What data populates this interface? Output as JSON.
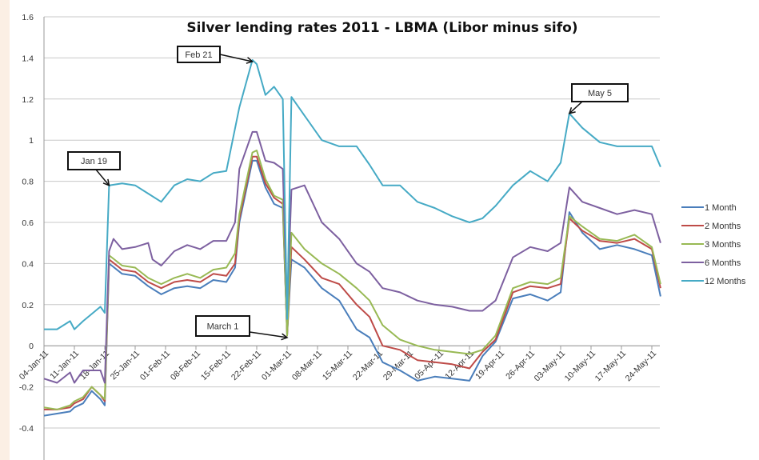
{
  "chart_data": {
    "type": "line",
    "title": "Silver lending rates 2011 - LBMA  (Libor minus sifo)",
    "xlabel": "",
    "ylabel": "",
    "x_unit": "days since 04-Jan-11",
    "ylim": [
      -0.4,
      1.6
    ],
    "yticks": [
      "1.6",
      "1.4",
      "1.2",
      "1",
      "0.8",
      "0.6",
      "0.4",
      "0.2",
      "0",
      "-0.2",
      "-0.4"
    ],
    "ytick_values": [
      1.6,
      1.4,
      1.2,
      1,
      0.8,
      0.6,
      0.4,
      0.2,
      0,
      -0.2,
      -0.4
    ],
    "xticks": [
      "04-Jan-11",
      "11-Jan-11",
      "18-Jan-11",
      "25-Jan-11",
      "01-Feb-11",
      "08-Feb-11",
      "15-Feb-11",
      "22-Feb-11",
      "01-Mar-11",
      "08-Mar-11",
      "15-Mar-11",
      "22-Mar-11",
      "29-Mar-11",
      "05-Apr-11",
      "12-Apr-11",
      "19-Apr-11",
      "26-Apr-11",
      "03-May-11",
      "10-May-11",
      "17-May-11",
      "24-May-11"
    ],
    "grid": true,
    "legend_position": "right",
    "series": [
      {
        "name": "1 Month",
        "color": "#4a7ebb",
        "points": [
          [
            0,
            -0.34
          ],
          [
            3,
            -0.33
          ],
          [
            6,
            -0.32
          ],
          [
            7,
            -0.3
          ],
          [
            9,
            -0.28
          ],
          [
            11,
            -0.22
          ],
          [
            13,
            -0.26
          ],
          [
            14,
            -0.29
          ],
          [
            15,
            0.4
          ],
          [
            18,
            0.35
          ],
          [
            21,
            0.34
          ],
          [
            24,
            0.29
          ],
          [
            27,
            0.25
          ],
          [
            30,
            0.28
          ],
          [
            33,
            0.29
          ],
          [
            36,
            0.28
          ],
          [
            39,
            0.32
          ],
          [
            42,
            0.31
          ],
          [
            44,
            0.38
          ],
          [
            45,
            0.6
          ],
          [
            48,
            0.9
          ],
          [
            49,
            0.9
          ],
          [
            51,
            0.77
          ],
          [
            53,
            0.69
          ],
          [
            55,
            0.67
          ],
          [
            56,
            0.05
          ],
          [
            57,
            0.42
          ],
          [
            60,
            0.38
          ],
          [
            64,
            0.28
          ],
          [
            68,
            0.22
          ],
          [
            72,
            0.08
          ],
          [
            75,
            0.04
          ],
          [
            78,
            -0.08
          ],
          [
            82,
            -0.12
          ],
          [
            86,
            -0.17
          ],
          [
            90,
            -0.15
          ],
          [
            94,
            -0.16
          ],
          [
            98,
            -0.17
          ],
          [
            101,
            -0.05
          ],
          [
            104,
            0.02
          ],
          [
            108,
            0.23
          ],
          [
            112,
            0.25
          ],
          [
            116,
            0.22
          ],
          [
            119,
            0.26
          ],
          [
            121,
            0.65
          ],
          [
            124,
            0.55
          ],
          [
            128,
            0.47
          ],
          [
            132,
            0.49
          ],
          [
            136,
            0.47
          ],
          [
            140,
            0.44
          ],
          [
            142,
            0.24
          ]
        ]
      },
      {
        "name": "2 Months",
        "color": "#be4b48",
        "points": [
          [
            0,
            -0.31
          ],
          [
            3,
            -0.31
          ],
          [
            6,
            -0.3
          ],
          [
            7,
            -0.28
          ],
          [
            9,
            -0.26
          ],
          [
            11,
            -0.2
          ],
          [
            13,
            -0.24
          ],
          [
            14,
            -0.27
          ],
          [
            15,
            0.42
          ],
          [
            18,
            0.37
          ],
          [
            21,
            0.36
          ],
          [
            24,
            0.31
          ],
          [
            27,
            0.28
          ],
          [
            30,
            0.31
          ],
          [
            33,
            0.32
          ],
          [
            36,
            0.31
          ],
          [
            39,
            0.35
          ],
          [
            42,
            0.34
          ],
          [
            44,
            0.4
          ],
          [
            45,
            0.62
          ],
          [
            48,
            0.92
          ],
          [
            49,
            0.92
          ],
          [
            51,
            0.79
          ],
          [
            53,
            0.72
          ],
          [
            55,
            0.69
          ],
          [
            56,
            0.05
          ],
          [
            57,
            0.48
          ],
          [
            60,
            0.42
          ],
          [
            64,
            0.33
          ],
          [
            68,
            0.3
          ],
          [
            72,
            0.2
          ],
          [
            75,
            0.14
          ],
          [
            78,
            0.0
          ],
          [
            82,
            -0.02
          ],
          [
            86,
            -0.07
          ],
          [
            90,
            -0.08
          ],
          [
            94,
            -0.09
          ],
          [
            98,
            -0.11
          ],
          [
            101,
            -0.03
          ],
          [
            104,
            0.03
          ],
          [
            108,
            0.26
          ],
          [
            112,
            0.29
          ],
          [
            116,
            0.28
          ],
          [
            119,
            0.3
          ],
          [
            121,
            0.62
          ],
          [
            124,
            0.56
          ],
          [
            128,
            0.51
          ],
          [
            132,
            0.5
          ],
          [
            136,
            0.52
          ],
          [
            140,
            0.47
          ],
          [
            142,
            0.28
          ]
        ]
      },
      {
        "name": "3 Months",
        "color": "#98b954",
        "points": [
          [
            0,
            -0.3
          ],
          [
            3,
            -0.31
          ],
          [
            6,
            -0.29
          ],
          [
            7,
            -0.27
          ],
          [
            9,
            -0.25
          ],
          [
            11,
            -0.2
          ],
          [
            13,
            -0.24
          ],
          [
            14,
            -0.26
          ],
          [
            15,
            0.44
          ],
          [
            18,
            0.39
          ],
          [
            21,
            0.38
          ],
          [
            24,
            0.33
          ],
          [
            27,
            0.3
          ],
          [
            30,
            0.33
          ],
          [
            33,
            0.35
          ],
          [
            36,
            0.33
          ],
          [
            39,
            0.37
          ],
          [
            42,
            0.38
          ],
          [
            44,
            0.45
          ],
          [
            45,
            0.64
          ],
          [
            48,
            0.94
          ],
          [
            49,
            0.95
          ],
          [
            51,
            0.81
          ],
          [
            53,
            0.73
          ],
          [
            55,
            0.71
          ],
          [
            56,
            0.05
          ],
          [
            57,
            0.55
          ],
          [
            60,
            0.47
          ],
          [
            64,
            0.4
          ],
          [
            68,
            0.35
          ],
          [
            72,
            0.28
          ],
          [
            75,
            0.22
          ],
          [
            78,
            0.1
          ],
          [
            82,
            0.03
          ],
          [
            86,
            0.0
          ],
          [
            90,
            -0.02
          ],
          [
            94,
            -0.03
          ],
          [
            98,
            -0.04
          ],
          [
            101,
            -0.02
          ],
          [
            104,
            0.05
          ],
          [
            108,
            0.28
          ],
          [
            112,
            0.31
          ],
          [
            116,
            0.3
          ],
          [
            119,
            0.33
          ],
          [
            121,
            0.63
          ],
          [
            124,
            0.58
          ],
          [
            128,
            0.52
          ],
          [
            132,
            0.51
          ],
          [
            136,
            0.54
          ],
          [
            140,
            0.48
          ],
          [
            142,
            0.3
          ]
        ]
      },
      {
        "name": "6 Months",
        "color": "#7d60a0",
        "points": [
          [
            0,
            -0.16
          ],
          [
            3,
            -0.18
          ],
          [
            6,
            -0.13
          ],
          [
            7,
            -0.18
          ],
          [
            9,
            -0.12
          ],
          [
            13,
            -0.12
          ],
          [
            14,
            -0.18
          ],
          [
            15,
            0.46
          ],
          [
            16,
            0.52
          ],
          [
            18,
            0.47
          ],
          [
            21,
            0.48
          ],
          [
            24,
            0.5
          ],
          [
            25,
            0.42
          ],
          [
            27,
            0.39
          ],
          [
            30,
            0.46
          ],
          [
            33,
            0.49
          ],
          [
            36,
            0.47
          ],
          [
            39,
            0.51
          ],
          [
            42,
            0.51
          ],
          [
            44,
            0.6
          ],
          [
            45,
            0.86
          ],
          [
            48,
            1.04
          ],
          [
            49,
            1.04
          ],
          [
            51,
            0.9
          ],
          [
            53,
            0.89
          ],
          [
            55,
            0.86
          ],
          [
            56,
            0.17
          ],
          [
            57,
            0.76
          ],
          [
            60,
            0.78
          ],
          [
            64,
            0.6
          ],
          [
            68,
            0.52
          ],
          [
            72,
            0.4
          ],
          [
            75,
            0.36
          ],
          [
            78,
            0.28
          ],
          [
            82,
            0.26
          ],
          [
            86,
            0.22
          ],
          [
            90,
            0.2
          ],
          [
            94,
            0.19
          ],
          [
            98,
            0.17
          ],
          [
            101,
            0.17
          ],
          [
            104,
            0.22
          ],
          [
            108,
            0.43
          ],
          [
            112,
            0.48
          ],
          [
            116,
            0.46
          ],
          [
            119,
            0.5
          ],
          [
            121,
            0.77
          ],
          [
            124,
            0.7
          ],
          [
            128,
            0.67
          ],
          [
            132,
            0.64
          ],
          [
            136,
            0.66
          ],
          [
            140,
            0.64
          ],
          [
            142,
            0.5
          ]
        ]
      },
      {
        "name": "12 Months",
        "color": "#46aac5",
        "points": [
          [
            0,
            0.08
          ],
          [
            3,
            0.08
          ],
          [
            6,
            0.12
          ],
          [
            7,
            0.08
          ],
          [
            9,
            0.12
          ],
          [
            13,
            0.19
          ],
          [
            14,
            0.16
          ],
          [
            15,
            0.78
          ],
          [
            18,
            0.79
          ],
          [
            21,
            0.78
          ],
          [
            24,
            0.74
          ],
          [
            27,
            0.7
          ],
          [
            30,
            0.78
          ],
          [
            33,
            0.81
          ],
          [
            36,
            0.8
          ],
          [
            39,
            0.84
          ],
          [
            42,
            0.85
          ],
          [
            45,
            1.16
          ],
          [
            48,
            1.39
          ],
          [
            49,
            1.37
          ],
          [
            51,
            1.22
          ],
          [
            53,
            1.26
          ],
          [
            55,
            1.2
          ],
          [
            56,
            0.13
          ],
          [
            57,
            1.21
          ],
          [
            60,
            1.12
          ],
          [
            64,
            1.0
          ],
          [
            68,
            0.97
          ],
          [
            72,
            0.97
          ],
          [
            75,
            0.88
          ],
          [
            78,
            0.78
          ],
          [
            82,
            0.78
          ],
          [
            86,
            0.7
          ],
          [
            90,
            0.67
          ],
          [
            94,
            0.63
          ],
          [
            98,
            0.6
          ],
          [
            101,
            0.62
          ],
          [
            104,
            0.68
          ],
          [
            108,
            0.78
          ],
          [
            112,
            0.85
          ],
          [
            116,
            0.8
          ],
          [
            119,
            0.89
          ],
          [
            121,
            1.13
          ],
          [
            124,
            1.06
          ],
          [
            128,
            0.99
          ],
          [
            132,
            0.97
          ],
          [
            136,
            0.97
          ],
          [
            140,
            0.97
          ],
          [
            142,
            0.87
          ]
        ]
      }
    ],
    "annotations": [
      {
        "text": "Jan 19",
        "day": 15,
        "value": 0.78
      },
      {
        "text": "Feb 21",
        "day": 48,
        "value": 1.39
      },
      {
        "text": "March 1",
        "day": 56,
        "value": 0.04
      },
      {
        "text": "May 5",
        "day": 121,
        "value": 1.13
      }
    ]
  }
}
